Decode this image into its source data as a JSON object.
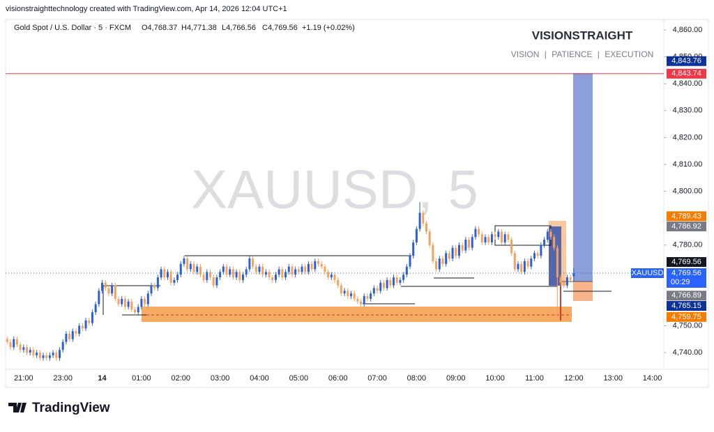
{
  "chart_data": {
    "type": "candlestick",
    "header": "visionstraighttechnology created with TradingView.com, Apr 14, 2026 12:04 UTC+1",
    "symbol": "Gold Spot / U.S. Dollar · 5 · FXCM",
    "ohlc": [
      "O4,768.37",
      "H4,771.38",
      "L4,766.56",
      "C4,769.56",
      "+1.19 (+0.02%)"
    ],
    "watermark": "XAUUSD, 5",
    "brand": "VISIONSTRAIGHT",
    "tagline": "VISION | PATIENCE | EXECUTION",
    "symbol_badge": "XAUUSD",
    "footer": "TradingView",
    "up_color": "#2b5fd9",
    "down_color": "#f6a15a",
    "grid": false,
    "ylim": [
      4733.8,
      4863.9
    ],
    "yticks": [
      {
        "value": 4740,
        "label": "4,740.00"
      },
      {
        "value": 4750,
        "label": "4,750.00"
      },
      {
        "value": 4780,
        "label": "4,780.00"
      },
      {
        "value": 4800,
        "label": "4,800.00"
      },
      {
        "value": 4810,
        "label": "4,810.00"
      },
      {
        "value": 4820,
        "label": "4,820.00"
      },
      {
        "value": 4830,
        "label": "4,830.00"
      },
      {
        "value": 4840,
        "label": "4,840.00"
      },
      {
        "value": 4850,
        "label": "4,850.00"
      },
      {
        "value": 4860,
        "label": "4,860.00"
      }
    ],
    "price_labels": [
      {
        "value": 4843.76,
        "label": "4,843.76",
        "color": "#0c3299"
      },
      {
        "value": 4843.74,
        "label": "4,843.74",
        "color": "#f23645",
        "line": "solid"
      },
      {
        "value": 4789.43,
        "label": "4,789.43",
        "color": "#f57c00"
      },
      {
        "value": 4786.92,
        "label": "4,786.92",
        "color": "#787b86"
      },
      {
        "value": 4769.56,
        "label": "4,769.56",
        "color": "#131722"
      },
      {
        "value": 4769.56,
        "label": "4,769.56",
        "color": "#2962ff",
        "line": "dotted",
        "countdown": "00:29"
      },
      {
        "value": 4766.89,
        "label": "4,766.89",
        "color": "#787b86"
      },
      {
        "value": 4765.15,
        "label": "4,765.15",
        "color": "#0c3299"
      },
      {
        "value": 4759.75,
        "label": "4,759.75",
        "color": "#f57c00"
      }
    ],
    "categories": [
      null,
      null,
      null,
      null,
      null,
      "21:00",
      null,
      null,
      null,
      null,
      null,
      null,
      null,
      null,
      null,
      null,
      null,
      "23:00",
      null,
      null,
      null,
      null,
      null,
      null,
      null,
      null,
      null,
      null,
      null,
      "14",
      null,
      null,
      null,
      null,
      null,
      null,
      null,
      null,
      null,
      null,
      null,
      "01:00",
      null,
      null,
      null,
      null,
      null,
      null,
      null,
      null,
      null,
      null,
      null,
      "02:00",
      null,
      null,
      null,
      null,
      null,
      null,
      null,
      null,
      null,
      null,
      null,
      "03:00",
      null,
      null,
      null,
      null,
      null,
      null,
      null,
      null,
      null,
      null,
      null,
      "04:00",
      null,
      null,
      null,
      null,
      null,
      null,
      null,
      null,
      null,
      null,
      null,
      "05:00",
      null,
      null,
      null,
      null,
      null,
      null,
      null,
      null,
      null,
      null,
      null,
      "06:00",
      null,
      null,
      null,
      null,
      null,
      null,
      null,
      null,
      null,
      null,
      null,
      "07:00",
      null,
      null,
      null,
      null,
      null,
      null,
      null,
      null,
      null,
      null,
      null,
      "08:00",
      null,
      null,
      null,
      null,
      null,
      null,
      null,
      null,
      null,
      null,
      null,
      "09:00",
      null,
      null,
      null,
      null,
      null,
      null,
      null,
      null,
      null,
      null,
      null,
      "10:00",
      null,
      null,
      null,
      null,
      null,
      null,
      null,
      null,
      null,
      null,
      null,
      "11:00",
      null,
      null,
      null,
      null,
      null,
      null,
      null,
      null,
      null,
      null,
      null,
      "12:00",
      null,
      null,
      null,
      null,
      null,
      null,
      null,
      null,
      null,
      null,
      null,
      "13:00",
      null,
      null,
      null,
      null,
      null,
      null,
      null,
      null,
      null,
      null,
      null,
      "14:00",
      null,
      null,
      null
    ],
    "candles": [
      [
        4745,
        4746,
        4743,
        4744
      ],
      [
        4744,
        4745,
        4741,
        4742
      ],
      [
        4742,
        4746,
        4741,
        4745
      ],
      [
        4745,
        4746,
        4742,
        4743
      ],
      [
        4743,
        4744,
        4740,
        4741
      ],
      [
        4741,
        4743,
        4740,
        4742
      ],
      [
        4742,
        4743,
        4739,
        4740
      ],
      [
        4740,
        4742,
        4739,
        4741
      ],
      [
        4741,
        4742,
        4738,
        4739
      ],
      [
        4739,
        4741,
        4738,
        4740
      ],
      [
        4740,
        4741,
        4737,
        4738
      ],
      [
        4738,
        4740,
        4737,
        4739
      ],
      [
        4739,
        4740,
        4737,
        4738
      ],
      [
        4738,
        4740,
        4737,
        4739
      ],
      [
        4739,
        4741,
        4738,
        4740
      ],
      [
        4740,
        4741,
        4737,
        4738
      ],
      [
        4738,
        4742,
        4737,
        4741
      ],
      [
        4741,
        4745,
        4740,
        4744
      ],
      [
        4744,
        4748,
        4743,
        4747
      ],
      [
        4747,
        4748,
        4744,
        4745
      ],
      [
        4745,
        4749,
        4744,
        4748
      ],
      [
        4748,
        4749,
        4746,
        4747
      ],
      [
        4747,
        4751,
        4746,
        4750
      ],
      [
        4750,
        4751,
        4748,
        4749
      ],
      [
        4749,
        4753,
        4748,
        4752
      ],
      [
        4752,
        4753,
        4750,
        4751
      ],
      [
        4751,
        4756,
        4750,
        4755
      ],
      [
        4755,
        4759,
        4754,
        4758
      ],
      [
        4758,
        4764,
        4757,
        4763
      ],
      [
        4763,
        4767,
        4762,
        4766
      ],
      [
        4766,
        4767,
        4763,
        4764
      ],
      [
        4764,
        4765,
        4761,
        4762
      ],
      [
        4762,
        4766,
        4761,
        4765
      ],
      [
        4765,
        4766,
        4759,
        4760
      ],
      [
        4760,
        4761,
        4757,
        4758
      ],
      [
        4758,
        4761,
        4757,
        4760
      ],
      [
        4760,
        4761,
        4756,
        4757
      ],
      [
        4757,
        4760,
        4756,
        4759
      ],
      [
        4759,
        4760,
        4755,
        4756
      ],
      [
        4756,
        4757,
        4754,
        4755
      ],
      [
        4755,
        4758,
        4754,
        4757
      ],
      [
        4757,
        4761,
        4756,
        4760
      ],
      [
        4760,
        4761,
        4757,
        4758
      ],
      [
        4758,
        4763,
        4757,
        4762
      ],
      [
        4762,
        4766,
        4761,
        4765
      ],
      [
        4765,
        4766,
        4763,
        4764
      ],
      [
        4764,
        4769,
        4763,
        4768
      ],
      [
        4768,
        4772,
        4767,
        4771
      ],
      [
        4771,
        4772,
        4767,
        4768
      ],
      [
        4768,
        4771,
        4767,
        4770
      ],
      [
        4770,
        4771,
        4765,
        4766
      ],
      [
        4766,
        4768,
        4765,
        4767
      ],
      [
        4767,
        4770,
        4766,
        4769
      ],
      [
        4769,
        4774,
        4768,
        4773
      ],
      [
        4773,
        4776,
        4772,
        4775
      ],
      [
        4775,
        4776,
        4770,
        4771
      ],
      [
        4771,
        4774,
        4770,
        4773
      ],
      [
        4773,
        4774,
        4769,
        4770
      ],
      [
        4770,
        4773,
        4769,
        4772
      ],
      [
        4772,
        4773,
        4768,
        4769
      ],
      [
        4769,
        4770,
        4766,
        4767
      ],
      [
        4767,
        4771,
        4766,
        4770
      ],
      [
        4770,
        4771,
        4767,
        4768
      ],
      [
        4768,
        4769,
        4764,
        4765
      ],
      [
        4765,
        4769,
        4764,
        4768
      ],
      [
        4768,
        4771,
        4767,
        4770
      ],
      [
        4770,
        4773,
        4769,
        4772
      ],
      [
        4772,
        4773,
        4768,
        4769
      ],
      [
        4769,
        4772,
        4768,
        4771
      ],
      [
        4771,
        4772,
        4767,
        4768
      ],
      [
        4768,
        4771,
        4767,
        4770
      ],
      [
        4770,
        4771,
        4766,
        4767
      ],
      [
        4767,
        4770,
        4766,
        4769
      ],
      [
        4769,
        4772,
        4768,
        4771
      ],
      [
        4771,
        4776,
        4770,
        4775
      ],
      [
        4775,
        4776,
        4771,
        4772
      ],
      [
        4772,
        4773,
        4769,
        4770
      ],
      [
        4770,
        4773,
        4769,
        4772
      ],
      [
        4772,
        4773,
        4768,
        4769
      ],
      [
        4769,
        4771,
        4768,
        4770
      ],
      [
        4770,
        4771,
        4767,
        4768
      ],
      [
        4768,
        4769,
        4766,
        4767
      ],
      [
        4767,
        4770,
        4766,
        4769
      ],
      [
        4769,
        4772,
        4768,
        4771
      ],
      [
        4771,
        4772,
        4767,
        4768
      ],
      [
        4768,
        4771,
        4767,
        4770
      ],
      [
        4770,
        4773,
        4769,
        4772
      ],
      [
        4772,
        4773,
        4768,
        4769
      ],
      [
        4769,
        4772,
        4768,
        4771
      ],
      [
        4771,
        4772,
        4769,
        4770
      ],
      [
        4770,
        4773,
        4769,
        4772
      ],
      [
        4772,
        4773,
        4769,
        4770
      ],
      [
        4770,
        4774,
        4769,
        4773
      ],
      [
        4773,
        4774,
        4770,
        4771
      ],
      [
        4771,
        4775,
        4770,
        4774
      ],
      [
        4774,
        4775,
        4772,
        4773
      ],
      [
        4773,
        4774,
        4771,
        4772
      ],
      [
        4772,
        4773,
        4769,
        4770
      ],
      [
        4770,
        4771,
        4767,
        4768
      ],
      [
        4768,
        4770,
        4767,
        4769
      ],
      [
        4769,
        4770,
        4766,
        4767
      ],
      [
        4767,
        4768,
        4764,
        4765
      ],
      [
        4765,
        4766,
        4761,
        4762
      ],
      [
        4762,
        4764,
        4761,
        4763
      ],
      [
        4763,
        4764,
        4760,
        4761
      ],
      [
        4761,
        4763,
        4760,
        4762
      ],
      [
        4762,
        4763,
        4759,
        4760
      ],
      [
        4760,
        4761,
        4758,
        4759
      ],
      [
        4759,
        4760,
        4757,
        4758
      ],
      [
        4758,
        4762,
        4757,
        4761
      ],
      [
        4761,
        4762,
        4759,
        4760
      ],
      [
        4760,
        4763,
        4759,
        4762
      ],
      [
        4762,
        4765,
        4761,
        4764
      ],
      [
        4764,
        4765,
        4762,
        4763
      ],
      [
        4763,
        4767,
        4762,
        4766
      ],
      [
        4766,
        4767,
        4763,
        4764
      ],
      [
        4764,
        4768,
        4763,
        4767
      ],
      [
        4767,
        4768,
        4764,
        4765
      ],
      [
        4765,
        4769,
        4764,
        4768
      ],
      [
        4768,
        4769,
        4765,
        4766
      ],
      [
        4766,
        4768,
        4765,
        4767
      ],
      [
        4767,
        4770,
        4766,
        4769
      ],
      [
        4769,
        4773,
        4768,
        4772
      ],
      [
        4772,
        4777,
        4771,
        4776
      ],
      [
        4776,
        4782,
        4775,
        4781
      ],
      [
        4781,
        4787,
        4780,
        4786
      ],
      [
        4786,
        4796,
        4785,
        4792
      ],
      [
        4792,
        4793,
        4787,
        4788
      ],
      [
        4788,
        4789,
        4784,
        4785
      ],
      [
        4785,
        4786,
        4779,
        4780
      ],
      [
        4780,
        4781,
        4773,
        4774
      ],
      [
        4774,
        4775,
        4770,
        4771
      ],
      [
        4771,
        4776,
        4770,
        4775
      ],
      [
        4775,
        4776,
        4772,
        4773
      ],
      [
        4773,
        4778,
        4772,
        4777
      ],
      [
        4777,
        4778,
        4774,
        4775
      ],
      [
        4775,
        4780,
        4774,
        4779
      ],
      [
        4779,
        4780,
        4775,
        4776
      ],
      [
        4776,
        4781,
        4775,
        4780
      ],
      [
        4780,
        4781,
        4777,
        4778
      ],
      [
        4778,
        4783,
        4777,
        4782
      ],
      [
        4782,
        4783,
        4778,
        4779
      ],
      [
        4779,
        4784,
        4778,
        4783
      ],
      [
        4783,
        4787,
        4782,
        4786
      ],
      [
        4786,
        4787,
        4783,
        4784
      ],
      [
        4784,
        4785,
        4780,
        4781
      ],
      [
        4781,
        4784,
        4780,
        4783
      ],
      [
        4783,
        4784,
        4780,
        4781
      ],
      [
        4781,
        4785,
        4780,
        4784
      ],
      [
        4784,
        4785,
        4782,
        4783
      ],
      [
        4783,
        4786,
        4782,
        4785
      ],
      [
        4785,
        4786,
        4780,
        4781
      ],
      [
        4781,
        4785,
        4780,
        4784
      ],
      [
        4784,
        4785,
        4781,
        4782
      ],
      [
        4782,
        4783,
        4776,
        4777
      ],
      [
        4777,
        4778,
        4770,
        4771
      ],
      [
        4771,
        4774,
        4770,
        4773
      ],
      [
        4773,
        4774,
        4769,
        4770
      ],
      [
        4770,
        4775,
        4769,
        4774
      ],
      [
        4774,
        4775,
        4771,
        4772
      ],
      [
        4772,
        4776,
        4771,
        4775
      ],
      [
        4775,
        4778,
        4774,
        4777
      ],
      [
        4777,
        4778,
        4775,
        4776
      ],
      [
        4776,
        4781,
        4775,
        4780
      ],
      [
        4780,
        4783,
        4779,
        4782
      ],
      [
        4782,
        4786,
        4781,
        4785
      ],
      [
        4785,
        4786,
        4782,
        4783
      ],
      [
        4783,
        4784,
        4778,
        4779
      ],
      [
        4779,
        4780,
        4752,
        4768
      ],
      [
        4768,
        4769,
        4765,
        4766
      ],
      [
        4766,
        4767,
        4764,
        4765
      ],
      [
        4765,
        4769,
        4764,
        4768
      ],
      [
        4768,
        4769,
        4766,
        4767
      ],
      [
        4768.37,
        4771.38,
        4766.56,
        4769.56
      ],
      null,
      null,
      null,
      null,
      null,
      null,
      null,
      null,
      null,
      null,
      null,
      null,
      null,
      null,
      null,
      null,
      null,
      null,
      null,
      null,
      null,
      null,
      null,
      null,
      null,
      null,
      null
    ]
  }
}
